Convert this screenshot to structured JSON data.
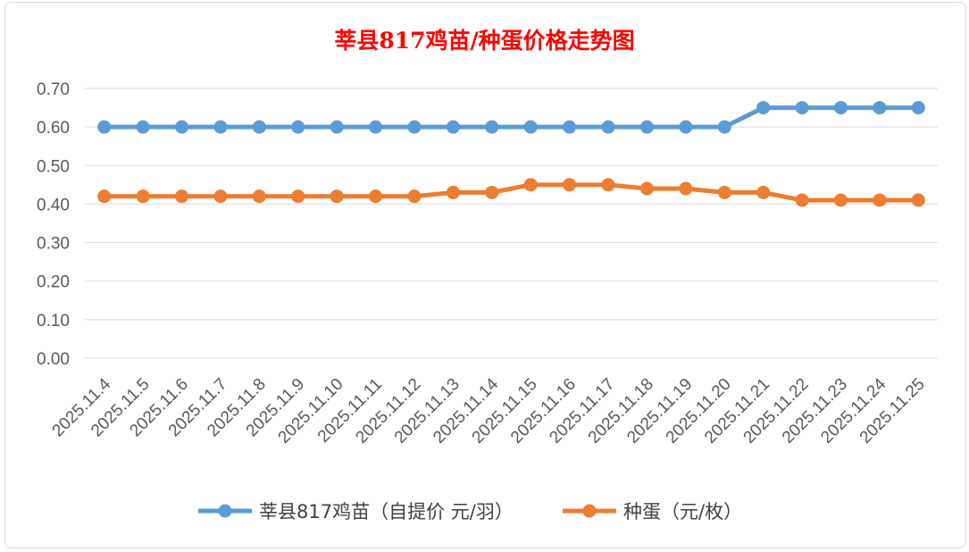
{
  "chart_data": {
    "type": "line",
    "title": "莘县817鸡苗/种蛋价格走势图",
    "categories": [
      "2025.11.4",
      "2025.11.5",
      "2025.11.6",
      "2025.11.7",
      "2025.11.8",
      "2025.11.9",
      "2025.11.10",
      "2025.11.11",
      "2025.11.12",
      "2025.11.13",
      "2025.11.14",
      "2025.11.15",
      "2025.11.16",
      "2025.11.17",
      "2025.11.18",
      "2025.11.19",
      "2025.11.20",
      "2025.11.21",
      "2025.11.22",
      "2025.11.23",
      "2025.11.24",
      "2025.11.25"
    ],
    "series": [
      {
        "name": "莘县817鸡苗（自提价 元/羽）",
        "color": "#5b9bd5",
        "values": [
          0.6,
          0.6,
          0.6,
          0.6,
          0.6,
          0.6,
          0.6,
          0.6,
          0.6,
          0.6,
          0.6,
          0.6,
          0.6,
          0.6,
          0.6,
          0.6,
          0.6,
          0.65,
          0.65,
          0.65,
          0.65,
          0.65
        ]
      },
      {
        "name": "种蛋（元/枚）",
        "color": "#ed7d31",
        "values": [
          0.42,
          0.42,
          0.42,
          0.42,
          0.42,
          0.42,
          0.42,
          0.42,
          0.42,
          0.43,
          0.43,
          0.45,
          0.45,
          0.45,
          0.44,
          0.44,
          0.43,
          0.43,
          0.41,
          0.41,
          0.41,
          0.41
        ]
      }
    ],
    "yticks": [
      "0.00",
      "0.10",
      "0.20",
      "0.30",
      "0.40",
      "0.50",
      "0.60",
      "0.70"
    ],
    "ylim": [
      0,
      0.7
    ],
    "grid": true,
    "legend": "bottom",
    "title_color": "#ff0000"
  }
}
